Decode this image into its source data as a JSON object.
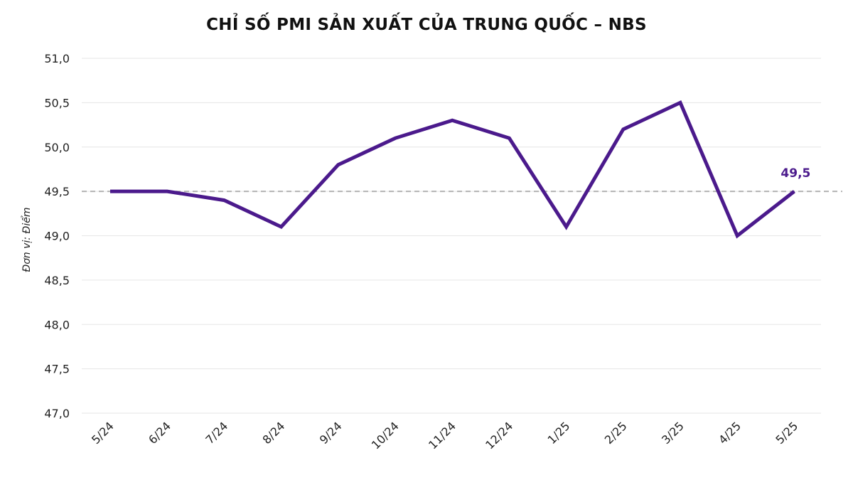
{
  "chart_data": {
    "type": "line",
    "title": "CHỈ SỐ PMI SẢN XUẤT CỦA TRUNG QUỐC – NBS",
    "xlabel": "",
    "ylabel": "Đơn vị: Điểm",
    "categories": [
      "5/24",
      "6/24",
      "7/24",
      "8/24",
      "9/24",
      "10/24",
      "11/24",
      "12/24",
      "1/25",
      "2/25",
      "3/25",
      "4/25",
      "5/25"
    ],
    "series": [
      {
        "values": [
          49.5,
          49.5,
          49.4,
          49.1,
          49.8,
          50.1,
          50.3,
          50.1,
          49.1,
          50.2,
          50.5,
          49.0,
          49.5
        ]
      }
    ],
    "ylim": [
      47.0,
      51.0
    ],
    "yticks": [
      "47,0",
      "47,5",
      "48,0",
      "48,5",
      "49,0",
      "49,5",
      "50,0",
      "50,5",
      "51,0"
    ],
    "reference_line": 49.5,
    "last_point_label": "49,5",
    "grid": true,
    "line_color": "#4B1A8C",
    "label_color": "#4B1A8C",
    "reference_color": "#B3B3B3"
  }
}
